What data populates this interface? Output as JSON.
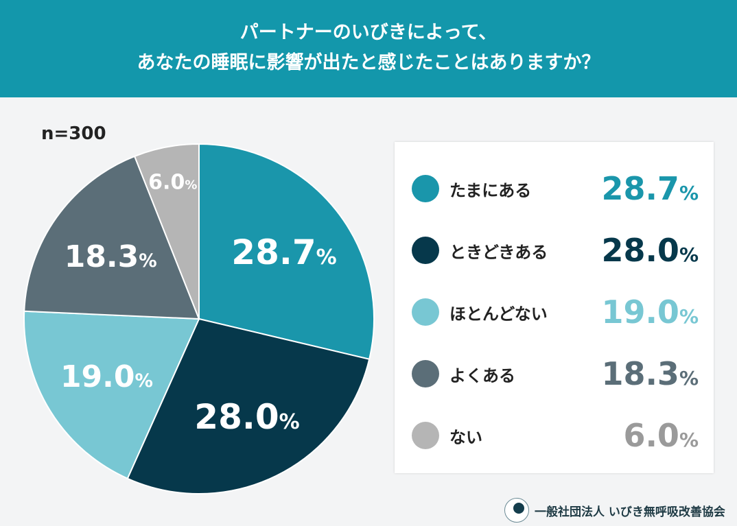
{
  "header": {
    "line1": "パートナーのいびきによって、",
    "line2": "あなたの睡眠に影響が出たと感じたことはありますか？"
  },
  "sample": "n=300",
  "chart_data": {
    "type": "pie",
    "unit": "%",
    "categories": [
      "たまにある",
      "ときどきある",
      "ほとんどない",
      "よくある",
      "ない"
    ],
    "values": [
      28.7,
      28.0,
      19.0,
      18.3,
      6.0
    ],
    "labels": [
      "28.7",
      "28.0",
      "19.0",
      "18.3",
      "6.0"
    ],
    "colors": [
      "#1a96ab",
      "#06384b",
      "#78c7d3",
      "#5b6e78",
      "#b5b5b5"
    ],
    "start": "12 o'clock, clockwise",
    "legend_placement": "right"
  },
  "footer": {
    "org": "一般社団法人 いびき無呼吸改善協会"
  }
}
